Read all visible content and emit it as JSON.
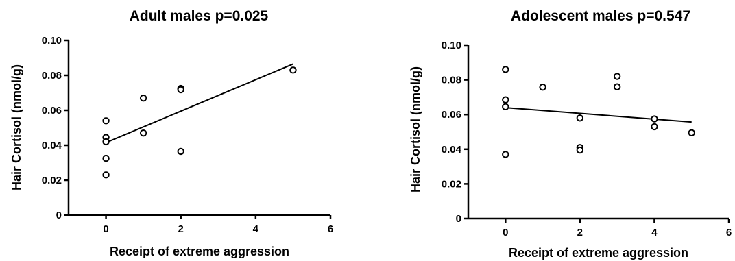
{
  "chart_data": [
    {
      "type": "scatter",
      "title": "Adult males  p=0.025",
      "xlabel": "Receipt of extreme aggression",
      "ylabel": "Hair Cortisol (nmol/g)",
      "xlim": [
        -1,
        6
      ],
      "ylim": [
        0,
        0.1
      ],
      "xticks": [
        0,
        2,
        4,
        6
      ],
      "yticks": [
        0,
        0.02,
        0.04,
        0.06,
        0.08,
        0.1
      ],
      "ytick_labels": [
        "0",
        "0.02",
        "0.04",
        "0.06",
        "0.08",
        "0.10"
      ],
      "grid": false,
      "points": [
        {
          "x": 0,
          "y": 0.054
        },
        {
          "x": 0,
          "y": 0.0445
        },
        {
          "x": 0,
          "y": 0.042
        },
        {
          "x": 0,
          "y": 0.0325
        },
        {
          "x": 0,
          "y": 0.023
        },
        {
          "x": 1,
          "y": 0.067
        },
        {
          "x": 1,
          "y": 0.047
        },
        {
          "x": 2,
          "y": 0.0725
        },
        {
          "x": 2,
          "y": 0.0718
        },
        {
          "x": 2,
          "y": 0.0365
        },
        {
          "x": 5,
          "y": 0.083
        }
      ],
      "trendline": {
        "x": [
          0,
          5
        ],
        "y": [
          0.0415,
          0.0865
        ]
      }
    },
    {
      "type": "scatter",
      "title": "Adolescent males  p=0.547",
      "xlabel": "Receipt of extreme aggression",
      "ylabel": "Hair Cortisol (nmol/g)",
      "xlim": [
        -1,
        6
      ],
      "ylim": [
        0,
        0.1
      ],
      "xticks": [
        0,
        2,
        4,
        6
      ],
      "yticks": [
        0,
        0.02,
        0.04,
        0.06,
        0.08,
        0.1
      ],
      "ytick_labels": [
        "0",
        "0.02",
        "0.04",
        "0.06",
        "0.08",
        "0.10"
      ],
      "grid": false,
      "points": [
        {
          "x": 0,
          "y": 0.086
        },
        {
          "x": 0,
          "y": 0.0685
        },
        {
          "x": 0,
          "y": 0.0645
        },
        {
          "x": 0,
          "y": 0.037
        },
        {
          "x": 1,
          "y": 0.0758
        },
        {
          "x": 2,
          "y": 0.058
        },
        {
          "x": 2,
          "y": 0.041
        },
        {
          "x": 2,
          "y": 0.0395
        },
        {
          "x": 3,
          "y": 0.082
        },
        {
          "x": 3,
          "y": 0.076
        },
        {
          "x": 4,
          "y": 0.0575
        },
        {
          "x": 4,
          "y": 0.053
        },
        {
          "x": 5,
          "y": 0.0495
        }
      ],
      "trendline": {
        "x": [
          0,
          5
        ],
        "y": [
          0.064,
          0.0557
        ]
      }
    }
  ]
}
